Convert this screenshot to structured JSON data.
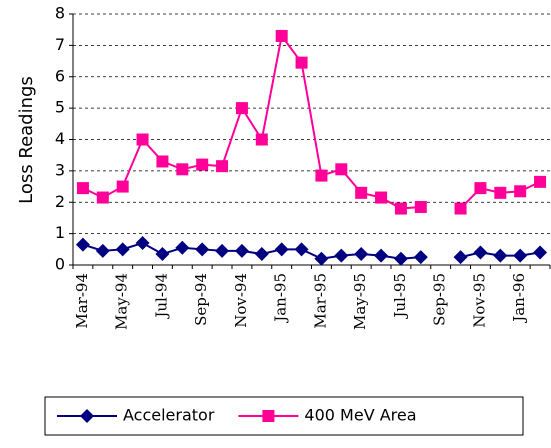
{
  "chart_data": {
    "type": "line",
    "y_label": "Loss Readings",
    "categories": [
      "Mar-94",
      null,
      "May-94",
      null,
      "Jul-94",
      null,
      "Sep-94",
      null,
      "Nov-94",
      null,
      "Jan-95",
      null,
      "Mar-95",
      null,
      "May-95",
      null,
      "Jul-95",
      null,
      "Sep-95",
      null,
      "Nov-95",
      null,
      "Jan-96",
      null
    ],
    "series": [
      {
        "name": "Accelerator",
        "color": "#000080",
        "marker": "diamond",
        "values": [
          0.65,
          0.45,
          0.5,
          0.7,
          0.35,
          0.55,
          0.5,
          0.45,
          0.45,
          0.35,
          0.5,
          0.5,
          0.2,
          0.3,
          0.35,
          0.3,
          0.2,
          0.25,
          null,
          0.25,
          0.4,
          0.3,
          0.3,
          0.4
        ]
      },
      {
        "name": "400 MeV Area",
        "color": "#ff0099",
        "marker": "square",
        "values": [
          2.45,
          2.15,
          2.5,
          4.0,
          3.3,
          3.05,
          3.2,
          3.15,
          5.0,
          4.0,
          7.3,
          6.45,
          2.85,
          3.05,
          2.3,
          2.15,
          1.8,
          1.85,
          null,
          1.8,
          2.45,
          2.3,
          2.35,
          2.65
        ]
      }
    ],
    "ylim": [
      0,
      8
    ],
    "yticks": [
      0,
      1,
      2,
      3,
      4,
      5,
      6,
      7,
      8
    ],
    "grid": true,
    "legend": "bottom"
  }
}
